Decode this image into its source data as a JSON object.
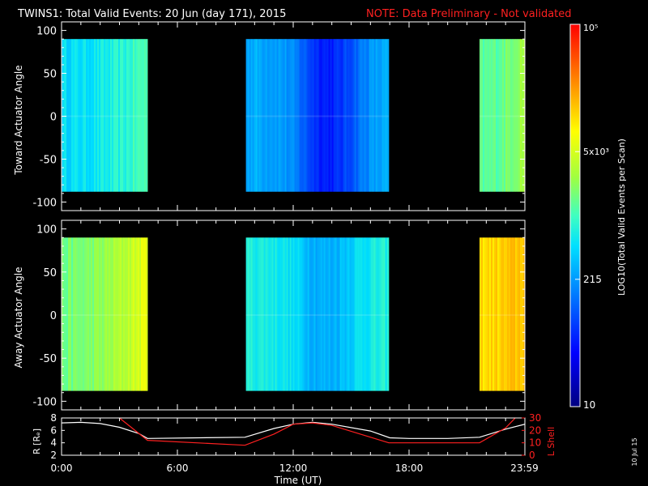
{
  "title_main": "TWINS1: Total Valid Events: 20 Jun (day 171), 2015",
  "title_note": "NOTE: Data Preliminary - Not validated",
  "side_date": "10 Jul 15",
  "colors": {
    "background": "#000000",
    "axis": "#ffffff",
    "note": "#ff2020",
    "r_line": "#ffffff",
    "lshell_line": "#ff2020"
  },
  "chart_data": [
    {
      "type": "heatmap",
      "id": "toward",
      "ylabel": "Toward Actuator Angle",
      "ylim": [
        -110,
        110
      ],
      "yticks": [
        100,
        50,
        0,
        -50,
        -100
      ],
      "xlim_hours": [
        0,
        24
      ],
      "data_ylim": [
        -88,
        90
      ],
      "data_segments": [
        {
          "start_h": 0.0,
          "end_h": 4.45,
          "base_value": 0.42,
          "ramp_to": 0.52
        },
        {
          "start_h": 9.55,
          "end_h": 16.95,
          "base_value": 0.36,
          "dip_center_h": 13.8,
          "dip_value": 0.18
        },
        {
          "start_h": 21.65,
          "end_h": 24.0,
          "base_value": 0.52,
          "ramp_to": 0.62
        }
      ]
    },
    {
      "type": "heatmap",
      "id": "away",
      "ylabel": "Away Actuator Angle",
      "ylim": [
        -110,
        110
      ],
      "yticks": [
        100,
        50,
        0,
        -50,
        -100
      ],
      "xlim_hours": [
        0,
        24
      ],
      "data_ylim": [
        -88,
        90
      ],
      "data_segments": [
        {
          "start_h": 0.0,
          "end_h": 4.45,
          "base_value": 0.55,
          "ramp_to": 0.7
        },
        {
          "start_h": 9.55,
          "end_h": 16.95,
          "base_value": 0.46,
          "dip_center_h": 13.6,
          "dip_value": 0.36
        },
        {
          "start_h": 21.65,
          "end_h": 24.0,
          "base_value": 0.76,
          "ramp_to": 0.8
        }
      ]
    },
    {
      "type": "line",
      "id": "orbit",
      "xlabel": "Time (UT)",
      "ylabel_left": "R [Rₑ]",
      "ylabel_right": "L Shell",
      "xlim_hours": [
        0,
        24
      ],
      "ylim_left": [
        2,
        8
      ],
      "ylim_right": [
        0,
        30
      ],
      "yticks_left": [
        8,
        6,
        4,
        2
      ],
      "yticks_right": [
        30,
        20,
        10,
        0
      ],
      "xtick_labels": [
        "0:00",
        "6:00",
        "12:00",
        "18:00",
        "23:59"
      ],
      "xtick_hours": [
        0,
        6,
        12,
        18,
        23.98
      ],
      "series": [
        {
          "name": "R",
          "axis": "left",
          "x": [
            0,
            1,
            2,
            3,
            4,
            4.45,
            9.5,
            11,
            12,
            13,
            14,
            16,
            17,
            18,
            20,
            21.65,
            23,
            24
          ],
          "y": [
            7.2,
            7.3,
            7.1,
            6.5,
            5.5,
            4.7,
            4.9,
            6.3,
            7.0,
            7.3,
            7.0,
            5.9,
            4.8,
            4.7,
            4.7,
            4.9,
            6.2,
            7.0
          ]
        },
        {
          "name": "L Shell",
          "axis": "right",
          "x": [
            3.0,
            4.45,
            9.5,
            11,
            12,
            13,
            14,
            16.95,
            21.65,
            23.0,
            23.5
          ],
          "y": [
            30,
            12,
            8,
            17,
            25,
            26,
            24,
            10,
            10,
            22,
            30
          ]
        }
      ]
    }
  ],
  "colorbar": {
    "label": "LOG10(Total Valid Events per Scan)",
    "tick_labels": [
      "10",
      "215",
      "5x10³",
      "10⁵"
    ],
    "tick_fractions": [
      0.0,
      0.333,
      0.667,
      1.0
    ]
  }
}
